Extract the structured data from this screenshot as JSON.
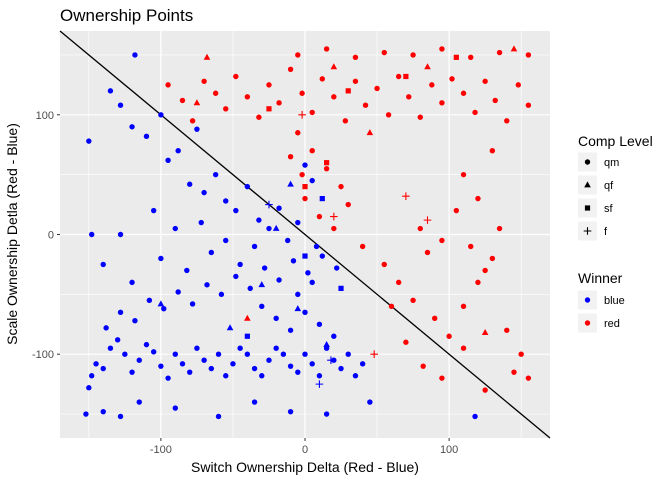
{
  "chart_data": {
    "type": "scatter",
    "title": "Ownership Points",
    "xlabel": "Switch Ownership Delta (Red - Blue)",
    "ylabel": "Scale Ownership Detla (Red - Blue)",
    "xlim": [
      -170,
      170
    ],
    "ylim": [
      -170,
      170
    ],
    "xticks": [
      -100,
      0,
      100
    ],
    "yticks": [
      -100,
      0,
      100
    ],
    "grid": true,
    "reference_line": {
      "intercept": 0,
      "slope": -1
    },
    "legend": [
      {
        "title": "Comp Level",
        "entries": [
          {
            "label": "qm",
            "shape": "circle"
          },
          {
            "label": "qf",
            "shape": "triangle"
          },
          {
            "label": "sf",
            "shape": "square"
          },
          {
            "label": "f",
            "shape": "plus"
          }
        ]
      },
      {
        "title": "Winner",
        "entries": [
          {
            "label": "blue",
            "color": "#0000ff"
          },
          {
            "label": "red",
            "color": "#ff0000"
          }
        ]
      }
    ],
    "series": [
      {
        "name": "blue",
        "color": "#0000ff",
        "points": [
          [
            -150,
            -128,
            "qm"
          ],
          [
            -148,
            -118,
            "qm"
          ],
          [
            -145,
            -108,
            "qm"
          ],
          [
            -140,
            -112,
            "qm"
          ],
          [
            -135,
            -95,
            "qm"
          ],
          [
            -130,
            -88,
            "qm"
          ],
          [
            -125,
            -100,
            "qm"
          ],
          [
            -120,
            -115,
            "qm"
          ],
          [
            -115,
            -105,
            "qm"
          ],
          [
            -110,
            -92,
            "qm"
          ],
          [
            -105,
            -98,
            "qm"
          ],
          [
            -100,
            -110,
            "qm"
          ],
          [
            -95,
            -120,
            "qm"
          ],
          [
            -90,
            -100,
            "qm"
          ],
          [
            -85,
            -108,
            "qm"
          ],
          [
            -80,
            -115,
            "qm"
          ],
          [
            -75,
            -95,
            "qm"
          ],
          [
            -70,
            -105,
            "qm"
          ],
          [
            -65,
            -112,
            "qm"
          ],
          [
            -60,
            -100,
            "qm"
          ],
          [
            -55,
            -118,
            "qm"
          ],
          [
            -50,
            -108,
            "qm"
          ],
          [
            -45,
            -95,
            "qm"
          ],
          [
            -40,
            -100,
            "qm"
          ],
          [
            -35,
            -112,
            "qm"
          ],
          [
            -30,
            -118,
            "qm"
          ],
          [
            -25,
            -105,
            "qm"
          ],
          [
            -20,
            -95,
            "qm"
          ],
          [
            -15,
            -100,
            "qm"
          ],
          [
            -10,
            -110,
            "qm"
          ],
          [
            -5,
            -115,
            "qm"
          ],
          [
            0,
            -100,
            "qm"
          ],
          [
            5,
            -108,
            "qm"
          ],
          [
            10,
            -118,
            "qm"
          ],
          [
            15,
            -95,
            "qm"
          ],
          [
            20,
            -105,
            "qm"
          ],
          [
            25,
            -112,
            "qm"
          ],
          [
            30,
            -100,
            "qm"
          ],
          [
            35,
            -118,
            "qm"
          ],
          [
            40,
            -108,
            "qm"
          ],
          [
            -138,
            -78,
            "qm"
          ],
          [
            -128,
            -65,
            "qm"
          ],
          [
            -118,
            -72,
            "qm"
          ],
          [
            -108,
            -55,
            "qm"
          ],
          [
            -98,
            -62,
            "qm"
          ],
          [
            -88,
            -48,
            "qm"
          ],
          [
            -78,
            -58,
            "qm"
          ],
          [
            -68,
            -42,
            "qm"
          ],
          [
            -58,
            -50,
            "qm"
          ],
          [
            -48,
            -35,
            "qm"
          ],
          [
            -38,
            -45,
            "qm"
          ],
          [
            -28,
            -28,
            "qm"
          ],
          [
            -18,
            -38,
            "qm"
          ],
          [
            -8,
            -22,
            "qm"
          ],
          [
            2,
            -32,
            "qm"
          ],
          [
            12,
            -18,
            "qm"
          ],
          [
            22,
            -28,
            "qm"
          ],
          [
            -30,
            -60,
            "qm"
          ],
          [
            -20,
            -70,
            "qm"
          ],
          [
            -10,
            -80,
            "qm"
          ],
          [
            0,
            -65,
            "qm"
          ],
          [
            10,
            -75,
            "qm"
          ],
          [
            20,
            -85,
            "qm"
          ],
          [
            -5,
            -50,
            "qm"
          ],
          [
            5,
            -40,
            "qm"
          ],
          [
            -150,
            78,
            "qm"
          ],
          [
            -135,
            120,
            "qm"
          ],
          [
            -128,
            108,
            "qm"
          ],
          [
            -120,
            90,
            "qm"
          ],
          [
            -118,
            150,
            "qm"
          ],
          [
            -110,
            82,
            "qm"
          ],
          [
            -100,
            100,
            "qm"
          ],
          [
            -95,
            62,
            "qm"
          ],
          [
            -88,
            70,
            "qm"
          ],
          [
            -80,
            42,
            "qm"
          ],
          [
            -75,
            88,
            "qm"
          ],
          [
            -70,
            35,
            "qm"
          ],
          [
            -62,
            50,
            "qm"
          ],
          [
            -55,
            28,
            "qm"
          ],
          [
            -48,
            20,
            "qm"
          ],
          [
            -40,
            40,
            "qm"
          ],
          [
            -32,
            12,
            "qm"
          ],
          [
            -25,
            5,
            "qm"
          ],
          [
            -18,
            22,
            "qm"
          ],
          [
            -12,
            -5,
            "qm"
          ],
          [
            -5,
            10,
            "qm"
          ],
          [
            0,
            58,
            "qm"
          ],
          [
            5,
            45,
            "qm"
          ],
          [
            8,
            -10,
            "qm"
          ],
          [
            -148,
            0,
            "qm"
          ],
          [
            -140,
            -25,
            "qm"
          ],
          [
            -128,
            0,
            "qm"
          ],
          [
            -120,
            -40,
            "qm"
          ],
          [
            -105,
            20,
            "qm"
          ],
          [
            -100,
            -20,
            "qm"
          ],
          [
            -90,
            5,
            "qm"
          ],
          [
            -82,
            -30,
            "qm"
          ],
          [
            -72,
            10,
            "qm"
          ],
          [
            -65,
            -15,
            "qm"
          ],
          [
            -55,
            -5,
            "qm"
          ],
          [
            -45,
            -25,
            "qm"
          ],
          [
            -35,
            -10,
            "qm"
          ],
          [
            -152,
            -150,
            "qm"
          ],
          [
            -140,
            -148,
            "qm"
          ],
          [
            -128,
            -152,
            "qm"
          ],
          [
            -115,
            -140,
            "qm"
          ],
          [
            -90,
            -145,
            "qm"
          ],
          [
            -60,
            -152,
            "qm"
          ],
          [
            -35,
            -140,
            "qm"
          ],
          [
            -10,
            -148,
            "qm"
          ],
          [
            15,
            -150,
            "qm"
          ],
          [
            45,
            -140,
            "qm"
          ],
          [
            118,
            -152,
            "qm"
          ],
          [
            -100,
            -58,
            "qf"
          ],
          [
            -52,
            -78,
            "qf"
          ],
          [
            -30,
            -42,
            "qf"
          ],
          [
            -5,
            -62,
            "qf"
          ],
          [
            15,
            -92,
            "qf"
          ],
          [
            -20,
            5,
            "qf"
          ],
          [
            -10,
            42,
            "qf"
          ],
          [
            -40,
            -85,
            "sf"
          ],
          [
            0,
            -18,
            "sf"
          ],
          [
            25,
            -45,
            "sf"
          ],
          [
            12,
            30,
            "sf"
          ],
          [
            10,
            -125,
            "f"
          ],
          [
            -25,
            25,
            "f"
          ],
          [
            18,
            -105,
            "f"
          ]
        ]
      },
      {
        "name": "red",
        "color": "#ff0000",
        "points": [
          [
            -95,
            125,
            "qm"
          ],
          [
            -85,
            112,
            "qm"
          ],
          [
            -78,
            95,
            "qm"
          ],
          [
            -70,
            128,
            "qm"
          ],
          [
            -62,
            118,
            "qm"
          ],
          [
            -55,
            105,
            "qm"
          ],
          [
            -48,
            132,
            "qm"
          ],
          [
            -40,
            115,
            "qm"
          ],
          [
            -32,
            98,
            "qm"
          ],
          [
            -25,
            125,
            "qm"
          ],
          [
            -18,
            110,
            "qm"
          ],
          [
            -10,
            138,
            "qm"
          ],
          [
            -2,
            118,
            "qm"
          ],
          [
            5,
            102,
            "qm"
          ],
          [
            12,
            130,
            "qm"
          ],
          [
            20,
            115,
            "qm"
          ],
          [
            28,
            95,
            "qm"
          ],
          [
            35,
            128,
            "qm"
          ],
          [
            42,
            108,
            "qm"
          ],
          [
            50,
            122,
            "qm"
          ],
          [
            58,
            100,
            "qm"
          ],
          [
            65,
            132,
            "qm"
          ],
          [
            72,
            115,
            "qm"
          ],
          [
            80,
            98,
            "qm"
          ],
          [
            88,
            125,
            "qm"
          ],
          [
            95,
            110,
            "qm"
          ],
          [
            102,
            130,
            "qm"
          ],
          [
            110,
            118,
            "qm"
          ],
          [
            118,
            102,
            "qm"
          ],
          [
            125,
            128,
            "qm"
          ],
          [
            132,
            112,
            "qm"
          ],
          [
            140,
            95,
            "qm"
          ],
          [
            148,
            125,
            "qm"
          ],
          [
            155,
            108,
            "qm"
          ],
          [
            -5,
            150,
            "qm"
          ],
          [
            15,
            155,
            "qm"
          ],
          [
            35,
            148,
            "qm"
          ],
          [
            55,
            152,
            "qm"
          ],
          [
            75,
            150,
            "qm"
          ],
          [
            95,
            155,
            "qm"
          ],
          [
            115,
            148,
            "qm"
          ],
          [
            135,
            152,
            "qm"
          ],
          [
            155,
            150,
            "qm"
          ],
          [
            -5,
            85,
            "qm"
          ],
          [
            5,
            70,
            "qm"
          ],
          [
            15,
            55,
            "qm"
          ],
          [
            25,
            40,
            "qm"
          ],
          [
            0,
            30,
            "qm"
          ],
          [
            10,
            15,
            "qm"
          ],
          [
            20,
            5,
            "qm"
          ],
          [
            30,
            25,
            "qm"
          ],
          [
            -10,
            65,
            "qm"
          ],
          [
            -2,
            50,
            "qm"
          ],
          [
            40,
            -10,
            "qm"
          ],
          [
            55,
            -25,
            "qm"
          ],
          [
            65,
            -40,
            "qm"
          ],
          [
            75,
            -55,
            "qm"
          ],
          [
            85,
            -15,
            "qm"
          ],
          [
            90,
            -70,
            "qm"
          ],
          [
            100,
            -85,
            "qm"
          ],
          [
            110,
            -60,
            "qm"
          ],
          [
            120,
            -40,
            "qm"
          ],
          [
            130,
            -20,
            "qm"
          ],
          [
            140,
            -80,
            "qm"
          ],
          [
            150,
            -100,
            "qm"
          ],
          [
            80,
            5,
            "qm"
          ],
          [
            95,
            -5,
            "qm"
          ],
          [
            105,
            20,
            "qm"
          ],
          [
            115,
            -10,
            "qm"
          ],
          [
            125,
            -30,
            "qm"
          ],
          [
            135,
            5,
            "qm"
          ],
          [
            60,
            -60,
            "qm"
          ],
          [
            70,
            -90,
            "qm"
          ],
          [
            82,
            -110,
            "qm"
          ],
          [
            95,
            -120,
            "qm"
          ],
          [
            110,
            -95,
            "qm"
          ],
          [
            125,
            -130,
            "qm"
          ],
          [
            145,
            -115,
            "qm"
          ],
          [
            155,
            -120,
            "qm"
          ],
          [
            110,
            50,
            "qm"
          ],
          [
            120,
            30,
            "qm"
          ],
          [
            130,
            70,
            "qm"
          ],
          [
            -75,
            110,
            "qf"
          ],
          [
            -40,
            -70,
            "qf"
          ],
          [
            20,
            140,
            "qf"
          ],
          [
            45,
            85,
            "qf"
          ],
          [
            85,
            140,
            "qf"
          ],
          [
            125,
            -82,
            "qf"
          ],
          [
            145,
            155,
            "qf"
          ],
          [
            -68,
            148,
            "qf"
          ],
          [
            -25,
            105,
            "sf"
          ],
          [
            30,
            120,
            "sf"
          ],
          [
            70,
            132,
            "sf"
          ],
          [
            105,
            148,
            "sf"
          ],
          [
            15,
            60,
            "sf"
          ],
          [
            0,
            40,
            "sf"
          ],
          [
            20,
            15,
            "f"
          ],
          [
            70,
            32,
            "f"
          ],
          [
            48,
            -100,
            "f"
          ],
          [
            -2,
            100,
            "f"
          ],
          [
            85,
            12,
            "f"
          ]
        ]
      }
    ]
  }
}
